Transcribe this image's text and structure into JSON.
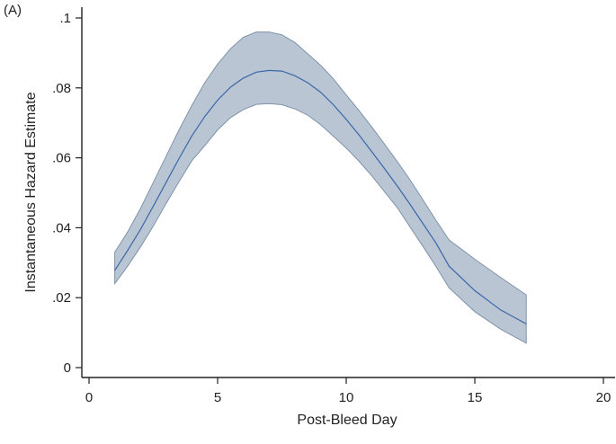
{
  "chart_data": {
    "type": "line",
    "panel_label": "(A)",
    "title": "",
    "xlabel": "Post-Bleed Day",
    "ylabel": "Instantaneous Hazard Estimate",
    "xlim": [
      0,
      20
    ],
    "ylim": [
      0,
      0.1
    ],
    "x_ticks": [
      0,
      5,
      10,
      15,
      20
    ],
    "x_tick_labels": [
      "0",
      "5",
      "10",
      "15",
      "20"
    ],
    "y_ticks": [
      0,
      0.02,
      0.04,
      0.06,
      0.08,
      0.1
    ],
    "y_tick_labels": [
      "0",
      ".02",
      ".04",
      ".06",
      ".08",
      ".1"
    ],
    "grid": false,
    "legend": "none",
    "colors": {
      "line": "#3a67a8",
      "band_fill": "#b9c5d3",
      "band_edge": "#7f93ab",
      "axis": "#222222"
    },
    "x": [
      1,
      1.5,
      2,
      2.5,
      3,
      3.5,
      4,
      4.5,
      5,
      5.5,
      6,
      6.5,
      7,
      7.5,
      8,
      8.5,
      9,
      9.5,
      10,
      10.5,
      11,
      11.5,
      12,
      12.5,
      13,
      13.5,
      14,
      15,
      16,
      17
    ],
    "estimate": [
      0.0278,
      0.0335,
      0.0395,
      0.0462,
      0.053,
      0.0598,
      0.0663,
      0.0718,
      0.0765,
      0.0802,
      0.0828,
      0.0845,
      0.085,
      0.0848,
      0.0835,
      0.0815,
      0.0788,
      0.0752,
      0.071,
      0.0665,
      0.0617,
      0.0568,
      0.0518,
      0.0465,
      0.041,
      0.0355,
      0.029,
      0.022,
      0.0165,
      0.0125
    ],
    "upper": [
      0.033,
      0.0388,
      0.0455,
      0.053,
      0.0605,
      0.068,
      0.075,
      0.0815,
      0.0868,
      0.0912,
      0.0945,
      0.096,
      0.096,
      0.0952,
      0.093,
      0.0898,
      0.0865,
      0.0826,
      0.078,
      0.0735,
      0.0688,
      0.0638,
      0.0588,
      0.0535,
      0.0478,
      0.042,
      0.0365,
      0.031,
      0.0258,
      0.0208
    ],
    "lower": [
      0.024,
      0.029,
      0.0345,
      0.0405,
      0.047,
      0.0532,
      0.0592,
      0.0635,
      0.068,
      0.0715,
      0.0738,
      0.0753,
      0.0755,
      0.0752,
      0.074,
      0.0722,
      0.0695,
      0.0662,
      0.0628,
      0.059,
      0.0548,
      0.0502,
      0.0456,
      0.04,
      0.0345,
      0.0288,
      0.0228,
      0.016,
      0.011,
      0.007
    ]
  }
}
